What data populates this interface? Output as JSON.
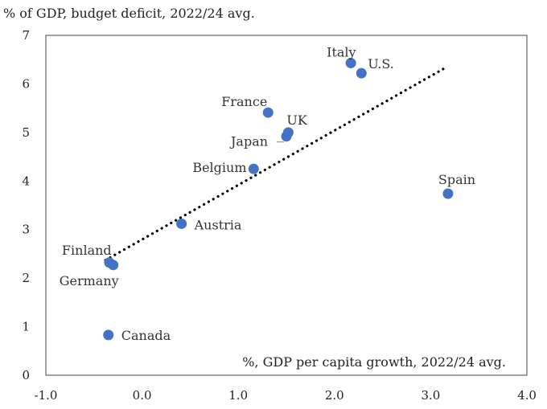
{
  "chart_data": {
    "type": "scatter",
    "title": "% of GDP, budget deficit, 2022/24 avg.",
    "xlabel": "%, GDP per capita growth, 2022/24 avg.",
    "ylabel": "",
    "xlim": [
      -1.0,
      4.0
    ],
    "ylim": [
      0,
      7
    ],
    "x_ticks": [
      "-1.0",
      "0.0",
      "1.0",
      "2.0",
      "3.0",
      "4.0"
    ],
    "y_ticks": [
      "0",
      "1",
      "2",
      "3",
      "4",
      "5",
      "6",
      "7"
    ],
    "grid": false,
    "marker_color": "#4472C4",
    "trendline": {
      "style": "dotted",
      "color": "#000000",
      "x": [
        -0.38,
        3.15
      ],
      "y": [
        2.37,
        6.33
      ]
    },
    "points": [
      {
        "label": "Italy",
        "x": 2.17,
        "y": 6.43
      },
      {
        "label": "U.S.",
        "x": 2.28,
        "y": 6.22
      },
      {
        "label": "France",
        "x": 1.31,
        "y": 5.41
      },
      {
        "label": "UK",
        "x": 1.52,
        "y": 5.0
      },
      {
        "label": "Japan",
        "x": 1.5,
        "y": 4.92
      },
      {
        "label": "Belgium",
        "x": 1.16,
        "y": 4.25
      },
      {
        "label": "Spain",
        "x": 3.18,
        "y": 3.74
      },
      {
        "label": "Austria",
        "x": 0.41,
        "y": 3.12
      },
      {
        "label": "Finland",
        "x": -0.34,
        "y": 2.32
      },
      {
        "label": "Germany",
        "x": -0.3,
        "y": 2.27
      },
      {
        "label": "Canada",
        "x": -0.35,
        "y": 0.83
      }
    ]
  }
}
